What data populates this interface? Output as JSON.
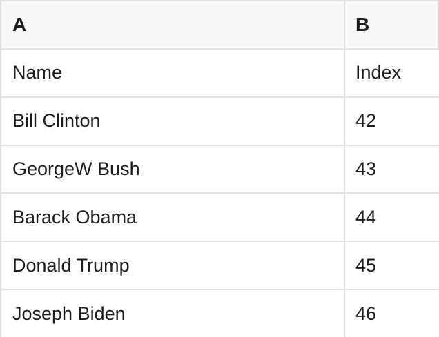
{
  "table": {
    "header": {
      "col_a": "A",
      "col_b": "B"
    },
    "rows": [
      {
        "a": "Name",
        "b": "Index"
      },
      {
        "a": "Bill Clinton",
        "b": "42"
      },
      {
        "a": "GeorgeW Bush",
        "b": "43"
      },
      {
        "a": "Barack Obama",
        "b": "44"
      },
      {
        "a": "Donald Trump",
        "b": "45"
      },
      {
        "a": "Joseph Biden",
        "b": "46"
      }
    ]
  },
  "colors": {
    "header_background": "#f8f8f8",
    "border": "#e2e2e2",
    "text": "#1d1d1f",
    "cell_background": "#ffffff"
  }
}
